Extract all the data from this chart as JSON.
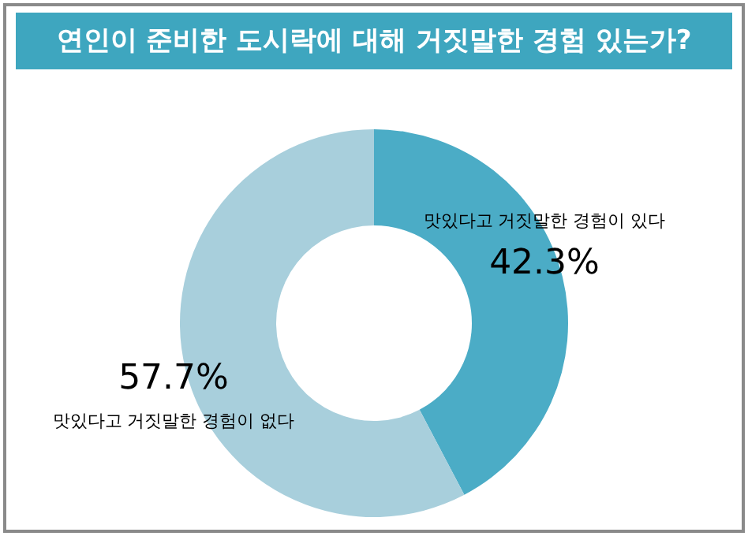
{
  "chart_data": {
    "type": "donut",
    "title": "연인이 준비한 도시락에 대해 거짓말한 경험 있는가?",
    "categories": [
      "맛있다고 거짓말한 경험이 있다",
      "맛있다고 거짓말한 경험이 없다"
    ],
    "values": [
      42.3,
      57.7
    ],
    "colors": [
      "#4bacc6",
      "#a8cfdc"
    ],
    "value_labels": [
      "42.3%",
      "57.7%"
    ],
    "legend": false
  }
}
